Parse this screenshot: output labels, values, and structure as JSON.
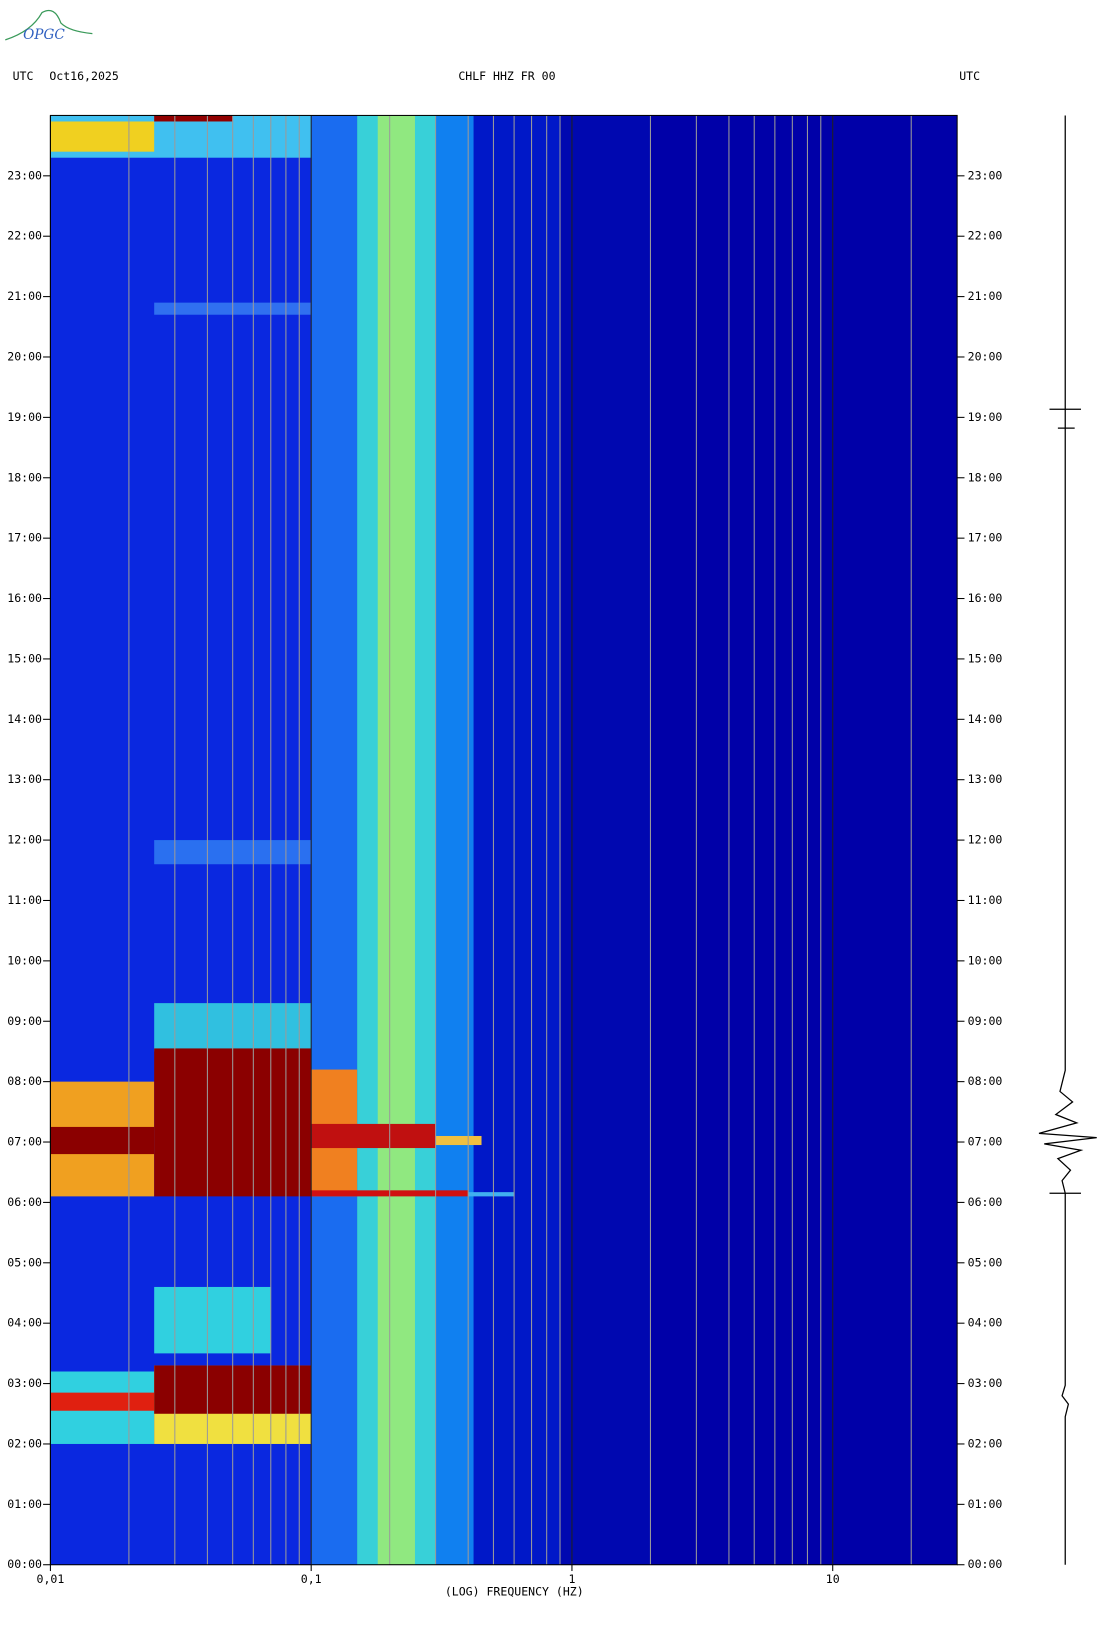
{
  "chart_data": {
    "type": "spectrogram",
    "logo": "OPGC",
    "header_left_zone": "UTC",
    "header_date": "Oct16,2025",
    "title": "CHLF HHZ FR 00",
    "header_right_zone": "UTC",
    "xlabel": "(LOG) FREQUENCY (HZ)",
    "xscale": "log",
    "xlim": [
      0.01,
      30
    ],
    "xticks": [
      {
        "value": 0.01,
        "label": "0,01"
      },
      {
        "value": 0.1,
        "label": "0,1"
      },
      1,
      10
    ],
    "xgrid": [
      0.02,
      0.03,
      0.04,
      0.05,
      0.06,
      0.07,
      0.08,
      0.09,
      0.2,
      0.3,
      0.4,
      0.5,
      0.6,
      0.7,
      0.8,
      0.9,
      2,
      3,
      4,
      5,
      6,
      7,
      8,
      9,
      20
    ],
    "ylim": [
      0,
      24
    ],
    "yticks": [
      {
        "value": 0,
        "label": "00:00"
      },
      {
        "value": 1,
        "label": "01:00"
      },
      {
        "value": 2,
        "label": "02:00"
      },
      {
        "value": 3,
        "label": "03:00"
      },
      {
        "value": 4,
        "label": "04:00"
      },
      {
        "value": 5,
        "label": "05:00"
      },
      {
        "value": 6,
        "label": "06:00"
      },
      {
        "value": 7,
        "label": "07:00"
      },
      {
        "value": 8,
        "label": "08:00"
      },
      {
        "value": 9,
        "label": "09:00"
      },
      {
        "value": 10,
        "label": "10:00"
      },
      {
        "value": 11,
        "label": "11:00"
      },
      {
        "value": 12,
        "label": "12:00"
      },
      {
        "value": 13,
        "label": "13:00"
      },
      {
        "value": 14,
        "label": "14:00"
      },
      {
        "value": 15,
        "label": "15:00"
      },
      {
        "value": 16,
        "label": "16:00"
      },
      {
        "value": 17,
        "label": "17:00"
      },
      {
        "value": 18,
        "label": "18:00"
      },
      {
        "value": 19,
        "label": "19:00"
      },
      {
        "value": 20,
        "label": "20:00"
      },
      {
        "value": 21,
        "label": "21:00"
      },
      {
        "value": 22,
        "label": "22:00"
      },
      {
        "value": 23,
        "label": "23:00"
      }
    ],
    "regions": [
      {
        "f": [
          0.01,
          30
        ],
        "t": [
          0,
          24
        ],
        "color": "#0000a8"
      },
      {
        "f": [
          0.01,
          0.1
        ],
        "t": [
          0,
          24
        ],
        "color": "#0a28e0"
      },
      {
        "f": [
          0.1,
          0.15
        ],
        "t": [
          0,
          24
        ],
        "color": "#1a6cf0"
      },
      {
        "f": [
          0.15,
          0.3
        ],
        "t": [
          0,
          24
        ],
        "color": "#38d0d8"
      },
      {
        "f": [
          0.18,
          0.25
        ],
        "t": [
          0,
          24
        ],
        "color": "#90e880"
      },
      {
        "f": [
          0.3,
          0.42
        ],
        "t": [
          0,
          24
        ],
        "color": "#1080f0"
      },
      {
        "f": [
          0.42,
          0.9
        ],
        "t": [
          0,
          24
        ],
        "color": "#0018c8"
      },
      {
        "f": [
          0.9,
          2
        ],
        "t": [
          0,
          24
        ],
        "color": "#0008b0"
      },
      {
        "f": [
          0.01,
          0.1
        ],
        "t": [
          23.3,
          24
        ],
        "color": "#40c0f0"
      },
      {
        "f": [
          0.01,
          0.025
        ],
        "t": [
          23.4,
          23.9
        ],
        "color": "#f0d020"
      },
      {
        "f": [
          0.025,
          0.05
        ],
        "t": [
          23.9,
          24
        ],
        "color": "#900000"
      },
      {
        "f": [
          0.025,
          0.1
        ],
        "t": [
          20.7,
          20.9
        ],
        "color": "#3070f0"
      },
      {
        "f": [
          0.025,
          0.1
        ],
        "t": [
          11.6,
          12
        ],
        "color": "#2a70f0"
      },
      {
        "f": [
          0.025,
          0.1
        ],
        "t": [
          8.5,
          9.3
        ],
        "color": "#30c0e0"
      },
      {
        "f": [
          0.01,
          0.025
        ],
        "t": [
          6.1,
          8
        ],
        "color": "#f0a020"
      },
      {
        "f": [
          0.01,
          0.025
        ],
        "t": [
          6.8,
          7.25
        ],
        "color": "#8b0000"
      },
      {
        "f": [
          0.025,
          0.1
        ],
        "t": [
          6.1,
          8.55
        ],
        "color": "#8b0000"
      },
      {
        "f": [
          0.1,
          0.15
        ],
        "t": [
          6.1,
          8.2
        ],
        "color": "#f08020"
      },
      {
        "f": [
          0.1,
          0.3
        ],
        "t": [
          6.9,
          7.3
        ],
        "color": "#c01010"
      },
      {
        "f": [
          0.3,
          0.45
        ],
        "t": [
          6.95,
          7.1
        ],
        "color": "#f0c040"
      },
      {
        "f": [
          0.1,
          0.4
        ],
        "t": [
          6.1,
          6.2
        ],
        "color": "#d01010"
      },
      {
        "f": [
          0.4,
          0.6
        ],
        "t": [
          6.1,
          6.17
        ],
        "color": "#40b0f0"
      },
      {
        "f": [
          0.01,
          0.025
        ],
        "t": [
          2,
          3.2
        ],
        "color": "#30d0e0"
      },
      {
        "f": [
          0.01,
          0.025
        ],
        "t": [
          2.55,
          2.85
        ],
        "color": "#e02010"
      },
      {
        "f": [
          0.025,
          0.1
        ],
        "t": [
          2,
          3.3
        ],
        "color": "#f0e040"
      },
      {
        "f": [
          0.025,
          0.1
        ],
        "t": [
          2.5,
          3.3
        ],
        "color": "#8b0000"
      },
      {
        "f": [
          0.025,
          0.07
        ],
        "t": [
          3.5,
          4.6
        ],
        "color": "#30d0e0"
      }
    ]
  }
}
